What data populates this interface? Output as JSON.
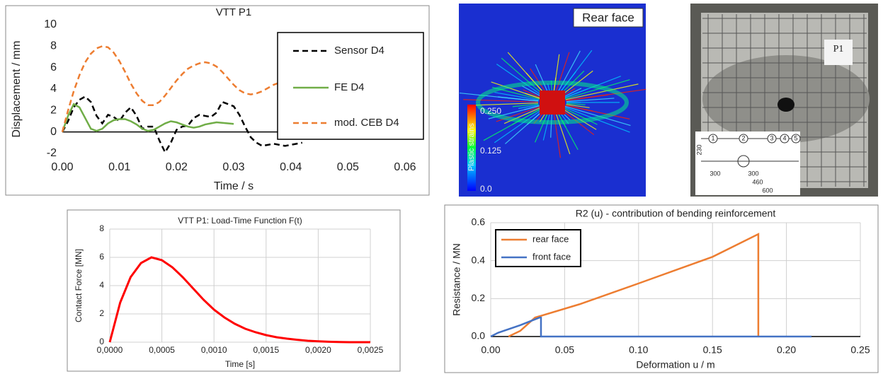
{
  "chart_data": [
    {
      "type": "line",
      "title": "VTT P1",
      "x_label": "Time / s",
      "y_label": "Displacement / mm",
      "x": [
        0,
        0.001,
        0.002,
        0.003,
        0.004,
        0.005,
        0.006,
        0.007,
        0.008,
        0.009,
        0.01,
        0.011,
        0.012,
        0.013,
        0.014,
        0.015,
        0.016,
        0.017,
        0.018,
        0.019,
        0.02,
        0.021,
        0.022,
        0.023,
        0.024,
        0.025,
        0.026,
        0.027,
        0.028,
        0.029,
        0.03,
        0.031,
        0.032,
        0.033,
        0.034,
        0.035,
        0.036,
        0.037,
        0.038,
        0.039,
        0.04,
        0.041,
        0.042
      ],
      "series": [
        {
          "name": "Sensor D4",
          "color": "#000000",
          "line_style": "dashed",
          "values": [
            0,
            1,
            2.3,
            3.0,
            3.3,
            2.8,
            1.5,
            0.8,
            1.6,
            1.4,
            1.0,
            1.8,
            2.3,
            1.5,
            0.3,
            0.5,
            0.5,
            -0.8,
            -1.9,
            -1.0,
            0.2,
            0.5,
            0.6,
            1.3,
            1.6,
            1.5,
            1.4,
            1.8,
            2.8,
            2.6,
            2.4,
            1.6,
            0.5,
            -0.5,
            -1.0,
            -1.3,
            -1.2,
            -1.1,
            -1.2,
            -1.3,
            -1.2,
            -1.1,
            -1.0
          ]
        },
        {
          "name": "FE D4",
          "color": "#70ad47",
          "line_style": "solid",
          "values": [
            0,
            1.5,
            2.6,
            2.3,
            1.3,
            0.3,
            0.1,
            0.3,
            0.8,
            1.1,
            1.2,
            1.2,
            1.0,
            0.7,
            0.3,
            0.1,
            0.2,
            0.5,
            0.8,
            1.0,
            0.9,
            0.7,
            0.5,
            0.4,
            0.5,
            0.7,
            0.8,
            0.9,
            0.85,
            0.8,
            0.75,
            null,
            null,
            null,
            null,
            null,
            null,
            null,
            null,
            null,
            null,
            null,
            null
          ]
        },
        {
          "name": "mod. CEB D4",
          "color": "#ed7d31",
          "line_style": "dashed",
          "values": [
            0,
            2.0,
            3.8,
            5.3,
            6.5,
            7.3,
            7.8,
            8.0,
            7.9,
            7.4,
            6.6,
            5.6,
            4.5,
            3.6,
            2.9,
            2.5,
            2.5,
            2.8,
            3.4,
            4.1,
            4.8,
            5.4,
            5.9,
            6.2,
            6.4,
            6.5,
            6.4,
            6.1,
            5.6,
            5.0,
            4.4,
            3.9,
            3.6,
            3.5,
            3.6,
            3.8,
            4.1,
            4.4,
            4.6,
            4.7,
            4.7,
            4.6,
            4.5
          ]
        }
      ],
      "xlim": [
        0,
        0.06
      ],
      "xticks": [
        {
          "value": 0,
          "label": "0.00"
        },
        {
          "value": 0.01,
          "label": "0.01"
        },
        {
          "value": 0.02,
          "label": "0.02"
        },
        {
          "value": 0.03,
          "label": "0.03"
        },
        {
          "value": 0.04,
          "label": "0.04"
        },
        {
          "value": 0.05,
          "label": "0.05"
        },
        {
          "value": 0.06,
          "label": "0.06"
        }
      ],
      "ylim": [
        -2,
        10
      ],
      "yticks": [
        -2,
        0,
        2,
        4,
        6,
        8,
        10
      ],
      "grid": false,
      "legend": "right"
    },
    {
      "type": "line",
      "title": "VTT P1: Load-Time Function F(t)",
      "x_label": "Time [s]",
      "y_label": "Contact Force [MN]",
      "x": [
        0,
        0.0001,
        0.0002,
        0.0003,
        0.0004,
        0.0005,
        0.0006,
        0.0007,
        0.0008,
        0.0009,
        0.001,
        0.0011,
        0.0012,
        0.0013,
        0.0014,
        0.0015,
        0.0016,
        0.0017,
        0.0018,
        0.0019,
        0.002,
        0.0021,
        0.0022,
        0.0023,
        0.0024,
        0.0025
      ],
      "series": [
        {
          "color": "#ff0000",
          "line_style": "solid",
          "values": [
            0,
            2.8,
            4.6,
            5.6,
            6.0,
            5.8,
            5.3,
            4.6,
            3.8,
            3.0,
            2.3,
            1.75,
            1.3,
            0.95,
            0.7,
            0.5,
            0.35,
            0.25,
            0.17,
            0.1,
            0.06,
            0.03,
            0.01,
            0,
            0,
            0
          ]
        }
      ],
      "xlim": [
        0,
        0.0025
      ],
      "xticks": [
        {
          "value": 0,
          "label": "0,0000"
        },
        {
          "value": 0.0005,
          "label": "0,0005"
        },
        {
          "value": 0.001,
          "label": "0,0010"
        },
        {
          "value": 0.0015,
          "label": "0,0015"
        },
        {
          "value": 0.002,
          "label": "0,0020"
        },
        {
          "value": 0.0025,
          "label": "0,0025"
        }
      ],
      "ylim": [
        0,
        8
      ],
      "yticks": [
        0,
        2,
        4,
        6,
        8
      ],
      "grid": true
    },
    {
      "type": "line",
      "title": "R2 (u) - contribution of bending reinforcement",
      "x_label": "Deformation u / m",
      "y_label": "Resistance / MN",
      "series": [
        {
          "name": "rear face",
          "color": "#ed7d31",
          "line_style": "solid",
          "x": [
            0.012,
            0.02,
            0.03,
            0.06,
            0.1,
            0.15,
            0.181,
            0.181
          ],
          "values": [
            0,
            0.03,
            0.1,
            0.17,
            0.28,
            0.42,
            0.54,
            0
          ]
        },
        {
          "name": "front face",
          "color": "#4472c4",
          "line_style": "solid",
          "x": [
            0,
            0.005,
            0.02,
            0.033,
            0.034,
            0.034,
            0.1,
            0.217
          ],
          "values": [
            0,
            0.02,
            0.06,
            0.1,
            0.1,
            0,
            0,
            0
          ]
        }
      ],
      "xlim": [
        0,
        0.25
      ],
      "xticks": [
        {
          "value": 0,
          "label": "0.00"
        },
        {
          "value": 0.05,
          "label": "0.05"
        },
        {
          "value": 0.1,
          "label": "0.10"
        },
        {
          "value": 0.15,
          "label": "0.15"
        },
        {
          "value": 0.2,
          "label": "0.20"
        },
        {
          "value": 0.25,
          "label": "0.25"
        }
      ],
      "ylim": [
        0,
        0.6
      ],
      "yticks": [
        {
          "value": 0,
          "label": "0.0"
        },
        {
          "value": 0.2,
          "label": "0.2"
        },
        {
          "value": 0.4,
          "label": "0.4"
        },
        {
          "value": 0.6,
          "label": "0.6"
        }
      ],
      "grid": true,
      "legend": "upper left"
    }
  ],
  "images": [
    {
      "label": "Rear face",
      "colorbar_title": "Plastic strains",
      "colorbar_ticks": [
        "0.250",
        "0.125",
        "0.0"
      ]
    },
    {
      "label": "P1",
      "markers": [
        "1",
        "2",
        "3",
        "4",
        "5"
      ],
      "dimensions": [
        "230",
        "300",
        "300",
        "460",
        "600"
      ]
    }
  ]
}
